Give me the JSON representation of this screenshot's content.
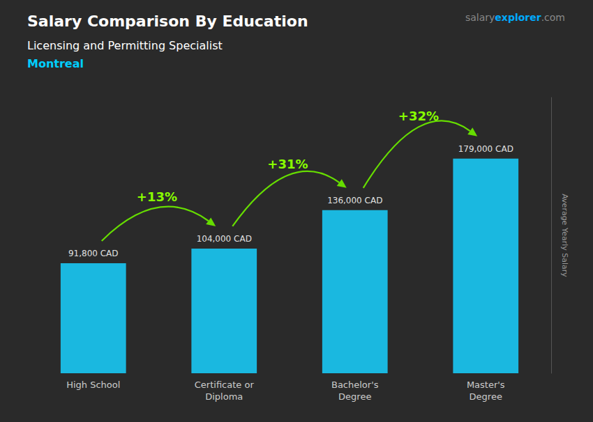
{
  "chart_data": {
    "type": "bar",
    "title": "Salary Comparison By Education",
    "subtitle": "Licensing and Permitting Specialist",
    "city": {
      "text": "Montreal",
      "color": "#00cfff"
    },
    "ylabel": "Average Yearly Salary",
    "categories": [
      "High School",
      "Certificate or\nDiploma",
      "Bachelor's\nDegree",
      "Master's\nDegree"
    ],
    "values": [
      91800,
      104000,
      136000,
      179000
    ],
    "value_labels": [
      "91,800 CAD",
      "104,000 CAD",
      "136,000 CAD",
      "179,000 CAD"
    ],
    "data_labels": true,
    "color": "#1ab8e0",
    "ylim": [
      0,
      230000
    ],
    "tick_labels": "x",
    "grid": false,
    "annotations": [
      {
        "text": "+13%",
        "from": "High School",
        "to": "Certificate or\nDiploma",
        "color": "#88ff00",
        "arrow_color": "#66dd00"
      },
      {
        "text": "+31%",
        "from": "Certificate or\nDiploma",
        "to": "Bachelor's\nDegree",
        "color": "#88ff00",
        "arrow_color": "#66dd00"
      },
      {
        "text": "+32%",
        "from": "Bachelor's\nDegree",
        "to": "Master's\nDegree",
        "color": "#88ff00",
        "arrow_color": "#66dd00"
      }
    ],
    "brand": [
      {
        "text": "salary",
        "color": "#888888"
      },
      {
        "text": "explorer",
        "color": "#00aaff"
      },
      {
        "text": ".com",
        "color": "#888888"
      }
    ]
  }
}
